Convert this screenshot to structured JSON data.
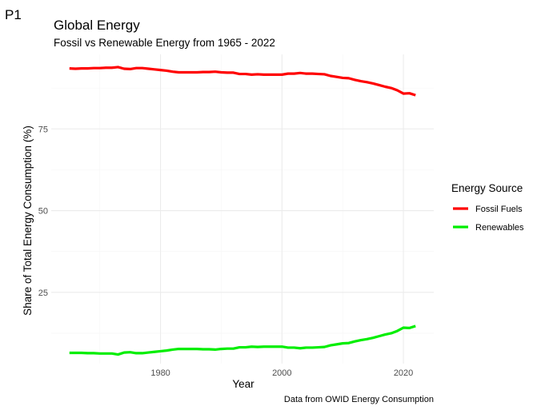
{
  "plot_tag": "P1",
  "chart_data": {
    "type": "line",
    "title": "Global Energy",
    "subtitle": "Fossil vs Renewable Energy from 1965 - 2022",
    "xlabel": "Year",
    "ylabel": "Share of Total Energy Consumption (%)",
    "caption": "Data from OWID Energy Consumption",
    "xlim": [
      1962,
      2025
    ],
    "ylim": [
      3.2,
      97.8
    ],
    "x_ticks": [
      1980,
      2000,
      2020
    ],
    "y_ticks": [
      25,
      50,
      75
    ],
    "grid": true,
    "legend_position": "right",
    "legend_title": "Energy Source",
    "x": [
      1965,
      1966,
      1967,
      1968,
      1969,
      1970,
      1971,
      1972,
      1973,
      1974,
      1975,
      1976,
      1977,
      1978,
      1979,
      1980,
      1981,
      1982,
      1983,
      1984,
      1985,
      1986,
      1987,
      1988,
      1989,
      1990,
      1991,
      1992,
      1993,
      1994,
      1995,
      1996,
      1997,
      1998,
      1999,
      2000,
      2001,
      2002,
      2003,
      2004,
      2005,
      2006,
      2007,
      2008,
      2009,
      2010,
      2011,
      2012,
      2013,
      2014,
      2015,
      2016,
      2017,
      2018,
      2019,
      2020,
      2021,
      2022
    ],
    "series": [
      {
        "name": "Fossil Fuels",
        "color": "#ff0000",
        "values": [
          93.5,
          93.4,
          93.5,
          93.5,
          93.6,
          93.6,
          93.7,
          93.7,
          93.9,
          93.4,
          93.3,
          93.6,
          93.6,
          93.4,
          93.2,
          93.0,
          92.8,
          92.5,
          92.3,
          92.3,
          92.3,
          92.3,
          92.4,
          92.4,
          92.5,
          92.3,
          92.2,
          92.2,
          91.8,
          91.8,
          91.6,
          91.7,
          91.6,
          91.6,
          91.6,
          91.6,
          91.9,
          91.9,
          92.1,
          91.9,
          91.9,
          91.8,
          91.7,
          91.2,
          90.9,
          90.6,
          90.5,
          90.0,
          89.6,
          89.3,
          88.9,
          88.4,
          87.9,
          87.5,
          86.8,
          85.8,
          85.9,
          85.3
        ]
      },
      {
        "name": "Renewables",
        "color": "#00ee00",
        "values": [
          6.5,
          6.5,
          6.5,
          6.4,
          6.4,
          6.3,
          6.3,
          6.3,
          6.0,
          6.6,
          6.7,
          6.4,
          6.4,
          6.6,
          6.8,
          7.0,
          7.2,
          7.5,
          7.7,
          7.7,
          7.7,
          7.7,
          7.6,
          7.6,
          7.5,
          7.7,
          7.8,
          7.8,
          8.2,
          8.2,
          8.4,
          8.3,
          8.4,
          8.4,
          8.4,
          8.4,
          8.1,
          8.1,
          7.9,
          8.1,
          8.1,
          8.2,
          8.3,
          8.8,
          9.1,
          9.4,
          9.5,
          10.0,
          10.4,
          10.7,
          11.1,
          11.6,
          12.1,
          12.5,
          13.2,
          14.2,
          14.1,
          14.7
        ]
      }
    ]
  }
}
